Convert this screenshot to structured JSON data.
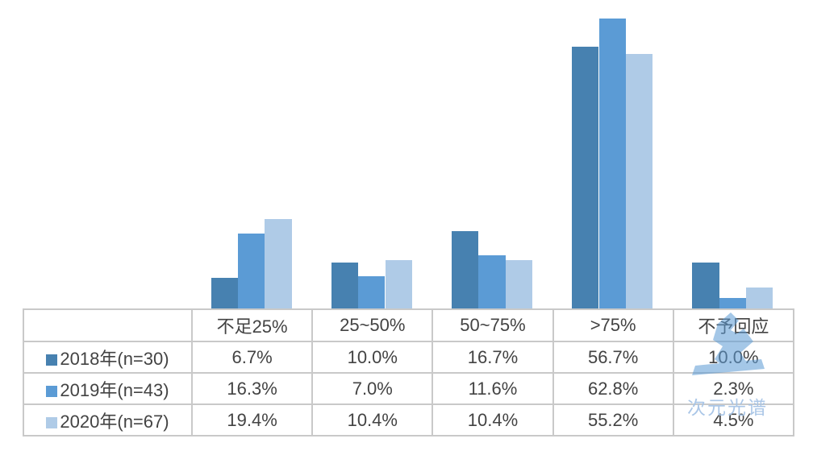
{
  "colors": {
    "series": [
      "#4781b0",
      "#5b9bd5",
      "#afcbe7"
    ],
    "table_border": "#c9c9c9",
    "table_text": "#434343",
    "watermark": "#9ec1e6"
  },
  "chart_data": {
    "type": "bar",
    "title": "",
    "xlabel": "",
    "ylabel": "",
    "categories": [
      "不足25%",
      "25~50%",
      "50~75%",
      ">75%",
      "不予回应"
    ],
    "series": [
      {
        "name": "2018年(n=30)",
        "values": [
          6.7,
          10.0,
          16.7,
          56.7,
          10.0
        ]
      },
      {
        "name": "2019年(n=43)",
        "values": [
          16.3,
          7.0,
          11.6,
          62.8,
          2.3
        ]
      },
      {
        "name": "2020年(n=67)",
        "values": [
          19.4,
          10.4,
          10.4,
          55.2,
          4.5
        ]
      }
    ],
    "value_unit": "%",
    "ylim": [
      0,
      67
    ],
    "gridlines": false,
    "legend_position": "table-rows-below-chart"
  },
  "table": {
    "columns": [
      "不足25%",
      "25~50%",
      "50~75%",
      ">75%",
      "不予回应"
    ],
    "rows": [
      {
        "label": "2018年(n=30)",
        "values": [
          "6.7%",
          "10.0%",
          "16.7%",
          "56.7%",
          "10.0%"
        ]
      },
      {
        "label": "2019年(n=43)",
        "values": [
          "16.3%",
          "7.0%",
          "11.6%",
          "62.8%",
          "2.3%"
        ]
      },
      {
        "label": "2020年(n=67)",
        "values": [
          "19.4%",
          "10.4%",
          "10.4%",
          "55.2%",
          "4.5%"
        ]
      }
    ]
  },
  "watermark": {
    "text": "次元光谱"
  }
}
